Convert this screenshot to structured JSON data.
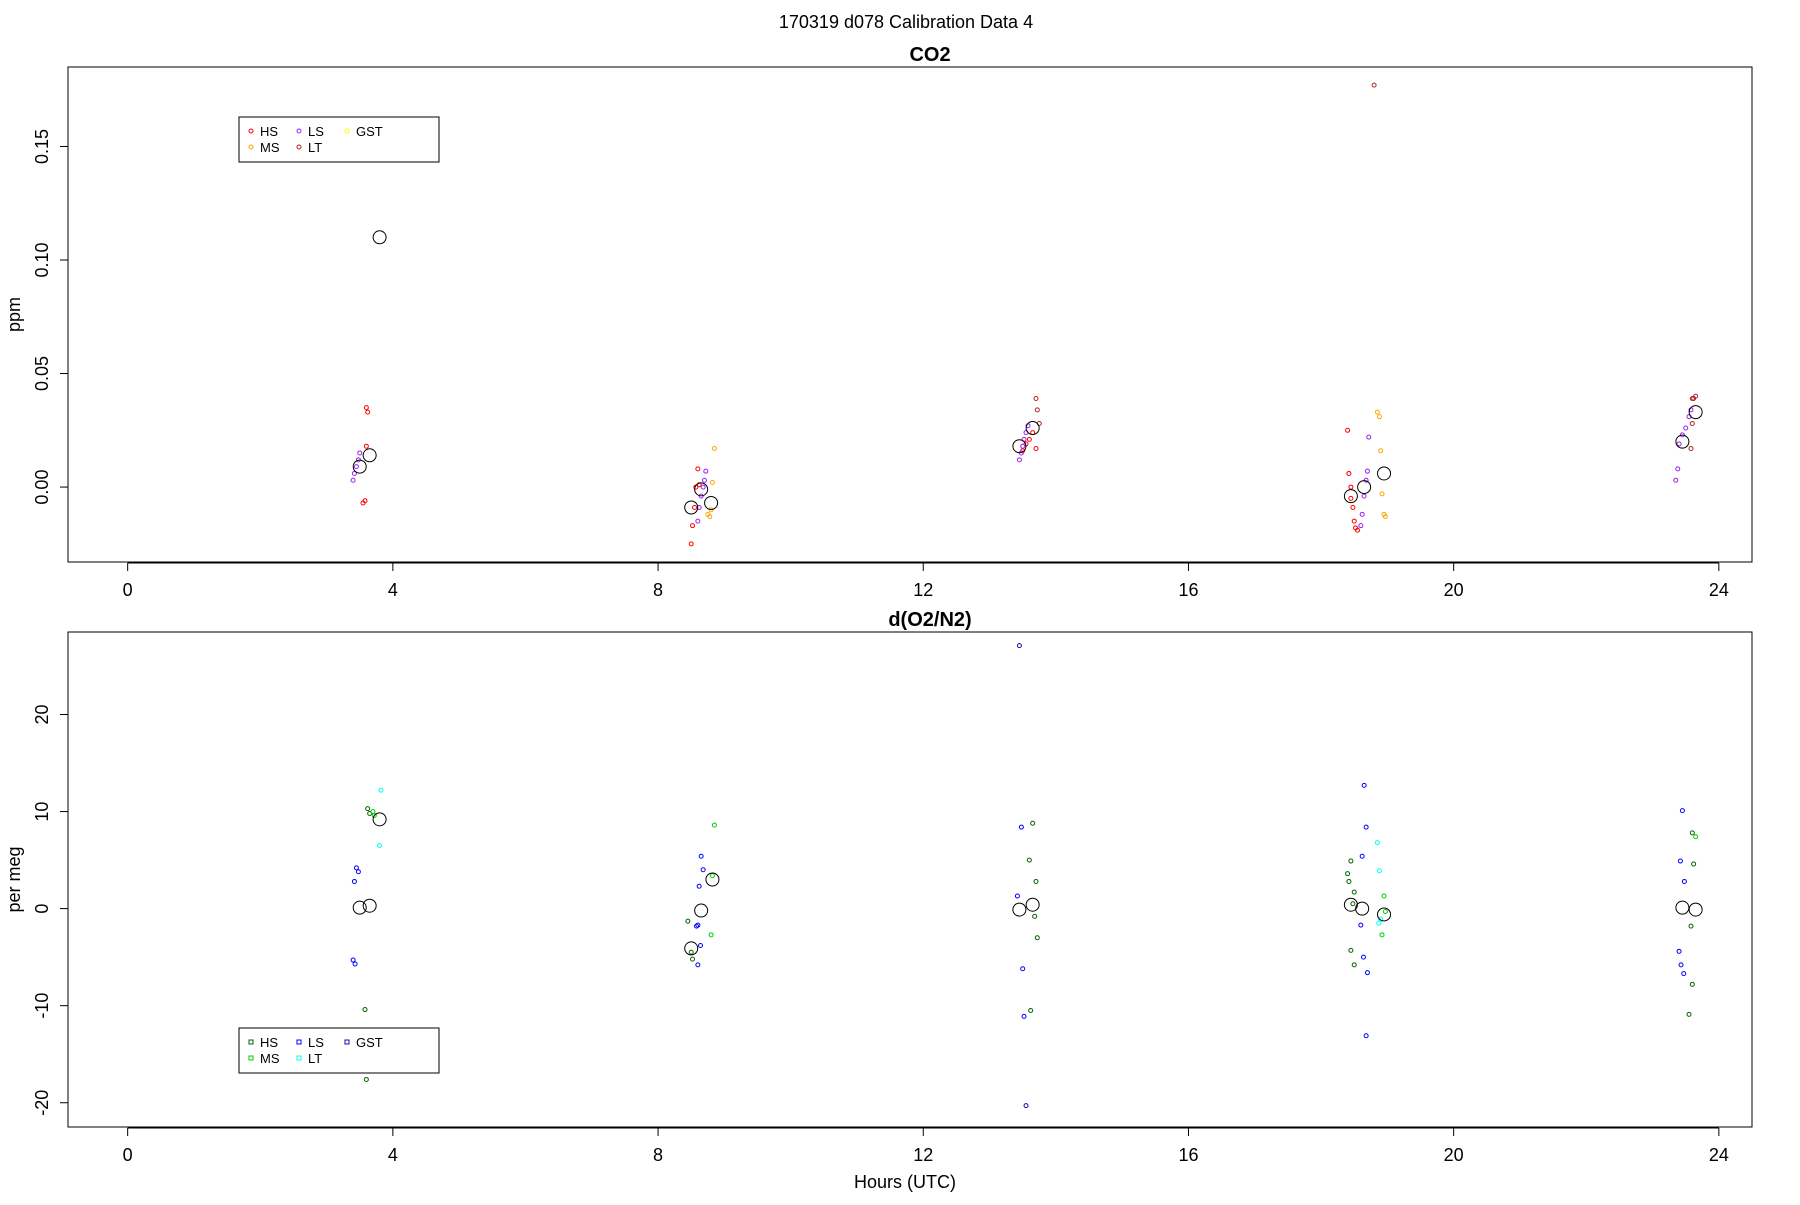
{
  "title": "170319   d078   Calibration Data 4",
  "legend_marker_shape": "circle",
  "chart_data": [
    {
      "type": "scatter",
      "title": "CO2",
      "xlabel": "",
      "ylabel": "ppm",
      "xlim": [
        -0.9,
        24.5
      ],
      "ylim": [
        -0.033,
        0.185
      ],
      "xticks": [
        "0",
        "4",
        "8",
        "12",
        "16",
        "20",
        "24"
      ],
      "xtick_values": [
        0,
        4,
        8,
        12,
        16,
        20,
        24
      ],
      "yticks": [
        "0.00",
        "0.05",
        "0.10",
        "0.15"
      ],
      "ytick_values": [
        0,
        0.05,
        0.1,
        0.15
      ],
      "grid": false,
      "legend_placement": "top-left",
      "legend_columns": 3,
      "series": [
        {
          "name": "HS",
          "color": "#ff0000",
          "points": [
            [
              3.6,
              0.035
            ],
            [
              3.62,
              0.033
            ],
            [
              3.58,
              -0.006
            ],
            [
              3.55,
              -0.007
            ],
            [
              3.6,
              0.018
            ],
            [
              8.5,
              -0.025
            ],
            [
              8.52,
              -0.017
            ],
            [
              8.55,
              -0.009
            ],
            [
              8.57,
              0
            ],
            [
              8.6,
              0.008
            ],
            [
              8.62,
              0.001
            ],
            [
              13.5,
              0.016
            ],
            [
              13.55,
              0.019
            ],
            [
              13.6,
              0.021
            ],
            [
              13.65,
              0.024
            ],
            [
              13.7,
              0.017
            ],
            [
              18.4,
              0.025
            ],
            [
              18.42,
              0.006
            ],
            [
              18.45,
              0
            ],
            [
              18.48,
              -0.009
            ],
            [
              18.5,
              -0.015
            ],
            [
              18.52,
              -0.018
            ],
            [
              18.55,
              -0.019
            ],
            [
              18.45,
              -0.005
            ]
          ]
        },
        {
          "name": "MS",
          "color": "#ffa500",
          "points": [
            [
              8.75,
              -0.012
            ],
            [
              8.78,
              -0.013
            ],
            [
              8.8,
              -0.01
            ],
            [
              8.82,
              0.002
            ],
            [
              8.85,
              0.017
            ],
            [
              18.85,
              0.033
            ],
            [
              18.88,
              0.031
            ],
            [
              18.9,
              0.016
            ],
            [
              18.92,
              -0.003
            ],
            [
              18.95,
              -0.012
            ],
            [
              18.97,
              -0.013
            ]
          ]
        },
        {
          "name": "LS",
          "color": "#a020f0",
          "points": [
            [
              3.4,
              0.003
            ],
            [
              3.42,
              0.006
            ],
            [
              3.45,
              0.009
            ],
            [
              3.48,
              0.012
            ],
            [
              3.5,
              0.015
            ],
            [
              8.6,
              -0.015
            ],
            [
              8.62,
              -0.009
            ],
            [
              8.65,
              -0.004
            ],
            [
              8.68,
              0
            ],
            [
              8.7,
              0.003
            ],
            [
              8.72,
              0.007
            ],
            [
              13.45,
              0.012
            ],
            [
              13.48,
              0.015
            ],
            [
              13.5,
              0.018
            ],
            [
              13.52,
              0.021
            ],
            [
              13.55,
              0.024
            ],
            [
              13.58,
              0.027
            ],
            [
              18.6,
              -0.017
            ],
            [
              18.62,
              -0.012
            ],
            [
              18.65,
              -0.004
            ],
            [
              18.68,
              0.003
            ],
            [
              18.7,
              0.007
            ],
            [
              18.72,
              0.022
            ],
            [
              23.35,
              0.003
            ],
            [
              23.38,
              0.008
            ],
            [
              23.4,
              0.019
            ],
            [
              23.45,
              0.023
            ],
            [
              23.5,
              0.026
            ],
            [
              23.55,
              0.031
            ],
            [
              23.58,
              0.034
            ]
          ]
        },
        {
          "name": "LT",
          "color": "#b22222",
          "points": [
            [
              13.7,
              0.039
            ],
            [
              13.72,
              0.034
            ],
            [
              13.75,
              0.028
            ],
            [
              18.8,
              0.177
            ],
            [
              23.6,
              0.039
            ],
            [
              23.62,
              0.039
            ],
            [
              23.65,
              0.04
            ],
            [
              23.6,
              0.028
            ],
            [
              23.58,
              0.017
            ]
          ]
        },
        {
          "name": "GST",
          "color": "#ffff00",
          "points": []
        },
        {
          "name": "",
          "color": "#000000",
          "marker": "large-circle",
          "points": [
            [
              3.5,
              0.009
            ],
            [
              3.65,
              0.014
            ],
            [
              3.8,
              0.11
            ],
            [
              8.5,
              -0.009
            ],
            [
              8.65,
              -0.001
            ],
            [
              8.8,
              -0.007
            ],
            [
              13.45,
              0.018
            ],
            [
              13.65,
              0.026
            ],
            [
              18.45,
              -0.004
            ],
            [
              18.65,
              0
            ],
            [
              18.95,
              0.006
            ],
            [
              23.45,
              0.02
            ],
            [
              23.65,
              0.033
            ]
          ]
        }
      ]
    },
    {
      "type": "scatter",
      "title": "d(O2/N2)",
      "xlabel": "Hours (UTC)",
      "ylabel": "per meg",
      "xlim": [
        -0.9,
        24.5
      ],
      "ylim": [
        -22.5,
        28.5
      ],
      "xticks": [
        "0",
        "4",
        "8",
        "12",
        "16",
        "20",
        "24"
      ],
      "xtick_values": [
        0,
        4,
        8,
        12,
        16,
        20,
        24
      ],
      "yticks": [
        "-20",
        "-10",
        "0",
        "10",
        "20"
      ],
      "ytick_values": [
        -20,
        -10,
        0,
        10,
        20
      ],
      "grid": false,
      "legend_placement": "bottom-left",
      "legend_columns": 3,
      "series": [
        {
          "name": "HS",
          "color": "#006400",
          "points": [
            [
              3.6,
              -17.6
            ],
            [
              3.58,
              -10.4
            ],
            [
              3.62,
              10.3
            ],
            [
              3.65,
              9.8
            ],
            [
              8.45,
              -1.3
            ],
            [
              8.5,
              -4.5
            ],
            [
              8.52,
              -5.2
            ],
            [
              13.65,
              8.8
            ],
            [
              13.6,
              5
            ],
            [
              13.7,
              2.8
            ],
            [
              13.68,
              -0.8
            ],
            [
              13.72,
              -3
            ],
            [
              13.62,
              -10.5
            ],
            [
              18.45,
              4.9
            ],
            [
              18.4,
              3.6
            ],
            [
              18.42,
              2.8
            ],
            [
              18.5,
              1.7
            ],
            [
              18.48,
              0.5
            ],
            [
              18.45,
              -4.3
            ],
            [
              18.5,
              -5.8
            ],
            [
              23.6,
              7.8
            ],
            [
              23.62,
              4.6
            ],
            [
              23.58,
              -1.8
            ],
            [
              23.6,
              -7.8
            ],
            [
              23.55,
              -10.9
            ]
          ]
        },
        {
          "name": "MS",
          "color": "#00cd00",
          "points": [
            [
              3.7,
              10
            ],
            [
              3.72,
              9.6
            ],
            [
              8.85,
              8.6
            ],
            [
              8.82,
              3.4
            ],
            [
              8.8,
              -2.7
            ],
            [
              18.95,
              1.3
            ],
            [
              18.97,
              -0.3
            ],
            [
              18.92,
              -2.7
            ],
            [
              23.65,
              7.4
            ]
          ]
        },
        {
          "name": "LS",
          "color": "#0000ff",
          "points": [
            [
              3.45,
              4.2
            ],
            [
              3.48,
              3.8
            ],
            [
              3.42,
              2.8
            ],
            [
              3.4,
              -5.3
            ],
            [
              3.43,
              -5.7
            ],
            [
              8.65,
              5.4
            ],
            [
              8.68,
              4
            ],
            [
              8.62,
              2.3
            ],
            [
              8.6,
              -1.7
            ],
            [
              8.58,
              -1.8
            ],
            [
              8.64,
              -3.8
            ],
            [
              8.6,
              -5.8
            ],
            [
              13.48,
              8.4
            ],
            [
              13.42,
              1.3
            ],
            [
              13.5,
              -6.2
            ],
            [
              13.52,
              -11.1
            ],
            [
              18.65,
              12.7
            ],
            [
              18.68,
              8.4
            ],
            [
              18.62,
              5.4
            ],
            [
              18.6,
              -1.7
            ],
            [
              18.64,
              -5
            ],
            [
              18.7,
              -6.6
            ],
            [
              18.68,
              -13.1
            ],
            [
              23.45,
              10.1
            ],
            [
              23.42,
              4.9
            ],
            [
              23.48,
              2.8
            ],
            [
              23.4,
              -4.4
            ],
            [
              23.43,
              -5.8
            ],
            [
              23.47,
              -6.7
            ]
          ]
        },
        {
          "name": "LT",
          "color": "#00ffff",
          "points": [
            [
              3.82,
              12.2
            ],
            [
              3.8,
              6.5
            ],
            [
              18.85,
              6.8
            ],
            [
              18.88,
              3.9
            ],
            [
              18.9,
              -1.1
            ],
            [
              18.87,
              -1.5
            ]
          ]
        },
        {
          "name": "GST",
          "color": "#1010a0",
          "points": [
            [
              13.45,
              27.1
            ],
            [
              13.55,
              -20.3
            ]
          ]
        },
        {
          "name": "",
          "color": "#000000",
          "marker": "large-circle",
          "points": [
            [
              3.5,
              0.1
            ],
            [
              3.65,
              0.3
            ],
            [
              3.8,
              9.2
            ],
            [
              8.5,
              -4.1
            ],
            [
              8.65,
              -0.2
            ],
            [
              8.82,
              3
            ],
            [
              13.45,
              -0.1
            ],
            [
              13.65,
              0.4
            ],
            [
              18.45,
              0.4
            ],
            [
              18.62,
              0
            ],
            [
              18.95,
              -0.6
            ],
            [
              23.45,
              0.1
            ],
            [
              23.65,
              -0.1
            ]
          ]
        }
      ]
    }
  ]
}
